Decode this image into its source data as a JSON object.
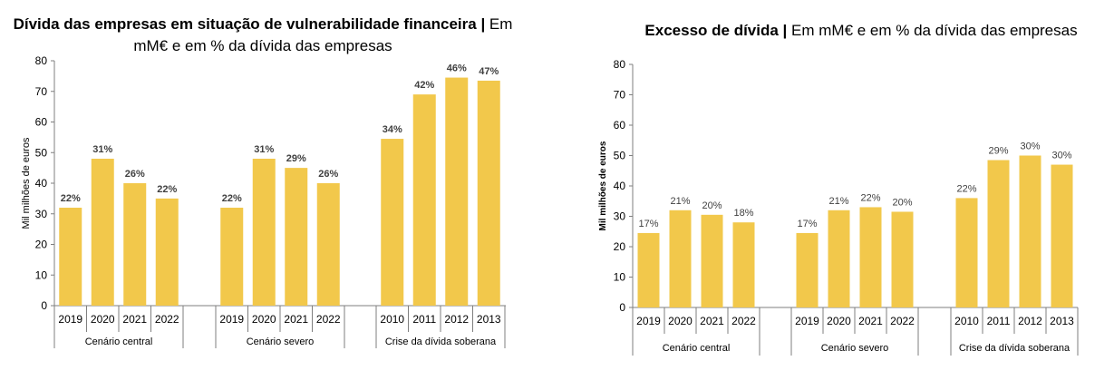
{
  "chart_data": [
    {
      "type": "bar",
      "title_bold": "Dívida das empresas em situação de vulnerabilidade financeira |",
      "title_rest": " Em mM€ e em % da dívida das empresas",
      "ylabel": "Mil milhões de euros",
      "ylim": [
        0,
        80
      ],
      "yticks": [
        0,
        10,
        20,
        30,
        40,
        50,
        60,
        70,
        80
      ],
      "groups": [
        {
          "name": "Cenário central",
          "categories": [
            "2019",
            "2020",
            "2021",
            "2022"
          ],
          "values": [
            32,
            48,
            40,
            35
          ],
          "labels": [
            "22%",
            "31%",
            "26%",
            "22%"
          ]
        },
        {
          "name": "Cenário severo",
          "categories": [
            "2019",
            "2020",
            "2021",
            "2022"
          ],
          "values": [
            32,
            48,
            45,
            40
          ],
          "labels": [
            "22%",
            "31%",
            "29%",
            "26%"
          ]
        },
        {
          "name": "Crise da dívida soberana",
          "categories": [
            "2010",
            "2011",
            "2012",
            "2013"
          ],
          "values": [
            54.5,
            69,
            74.5,
            73.5
          ],
          "labels": [
            "34%",
            "42%",
            "46%",
            "47%"
          ]
        }
      ],
      "bar_color": "#F2C84B",
      "grid": false
    },
    {
      "type": "bar",
      "title_bold": "Excesso de dívida |",
      "title_rest": " Em mM€ e em % da dívida das empresas",
      "ylabel": "Mil milhões de euros",
      "ylim": [
        0,
        80
      ],
      "yticks": [
        0,
        10,
        20,
        30,
        40,
        50,
        60,
        70,
        80
      ],
      "groups": [
        {
          "name": "Cenário central",
          "categories": [
            "2019",
            "2020",
            "2021",
            "2022"
          ],
          "values": [
            24.5,
            32,
            30.5,
            28
          ],
          "labels": [
            "17%",
            "21%",
            "20%",
            "18%"
          ]
        },
        {
          "name": "Cenário severo",
          "categories": [
            "2019",
            "2020",
            "2021",
            "2022"
          ],
          "values": [
            24.5,
            32,
            33,
            31.5
          ],
          "labels": [
            "17%",
            "21%",
            "22%",
            "20%"
          ]
        },
        {
          "name": "Crise da dívida soberana",
          "categories": [
            "2010",
            "2011",
            "2012",
            "2013"
          ],
          "values": [
            36,
            48.5,
            50,
            47
          ],
          "labels": [
            "22%",
            "29%",
            "30%",
            "30%"
          ]
        }
      ],
      "bar_color": "#F2C84B",
      "grid": false
    }
  ]
}
